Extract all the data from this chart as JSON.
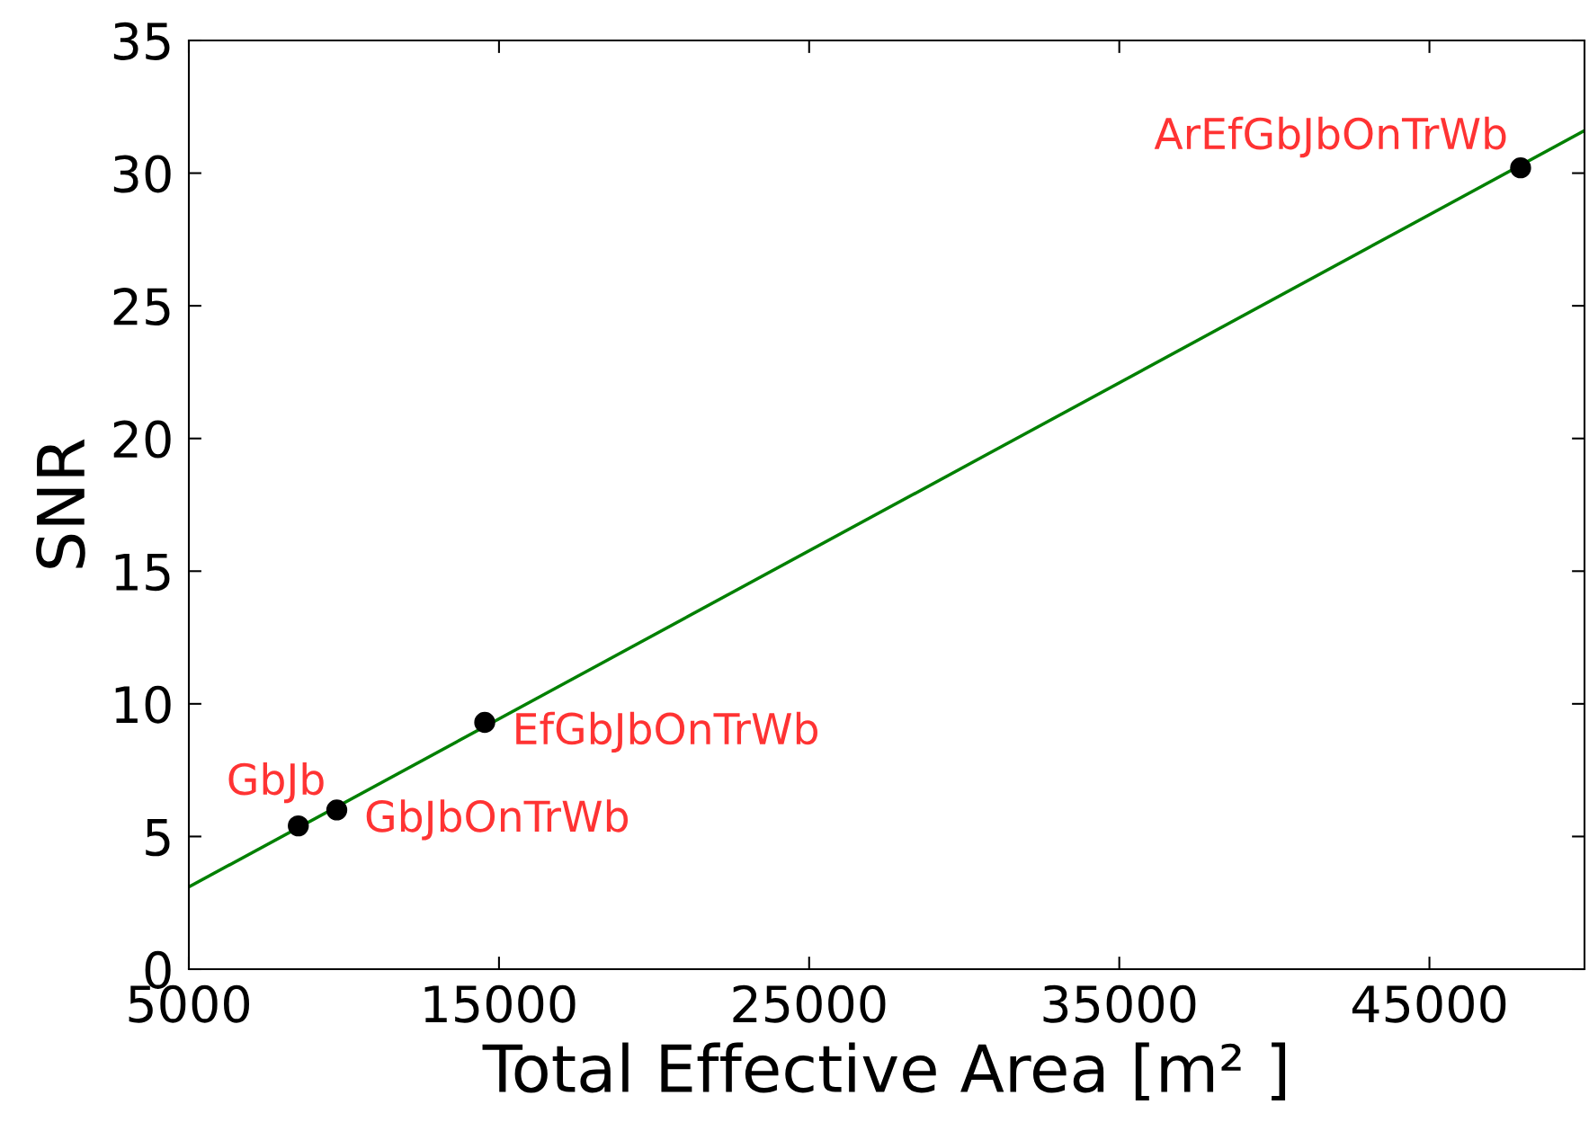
{
  "chart_data": {
    "type": "scatter",
    "xlabel": "Total Effective Area [m² ]",
    "ylabel": "SNR",
    "xlim": [
      5000,
      50000
    ],
    "xticks": [
      5000,
      15000,
      25000,
      35000,
      45000
    ],
    "ylim": [
      0,
      35
    ],
    "yticks": [
      0,
      5,
      10,
      15,
      20,
      25,
      30,
      35
    ],
    "grid": false,
    "legend": false,
    "series": [
      {
        "marker": "circle",
        "color": "#000000",
        "x": [
          8530,
          9770,
          14540,
          47940
        ],
        "values": [
          5.4,
          6.0,
          9.3,
          30.2
        ]
      },
      {
        "type": "line",
        "marker": "none",
        "color": "#008000",
        "x": [
          5000,
          50000
        ],
        "values": [
          3.1,
          31.6
        ]
      }
    ],
    "annotations": [
      {
        "text": "GbJb",
        "x": 8530,
        "y": 5.4
      },
      {
        "text": "GbJbOnTrWb",
        "x": 9770,
        "y": 6.0
      },
      {
        "text": "EfGbJbOnTrWb",
        "x": 14540,
        "y": 9.3
      },
      {
        "text": "ArEfGbJbOnTrWb",
        "x": 47940,
        "y": 30.2
      }
    ]
  }
}
